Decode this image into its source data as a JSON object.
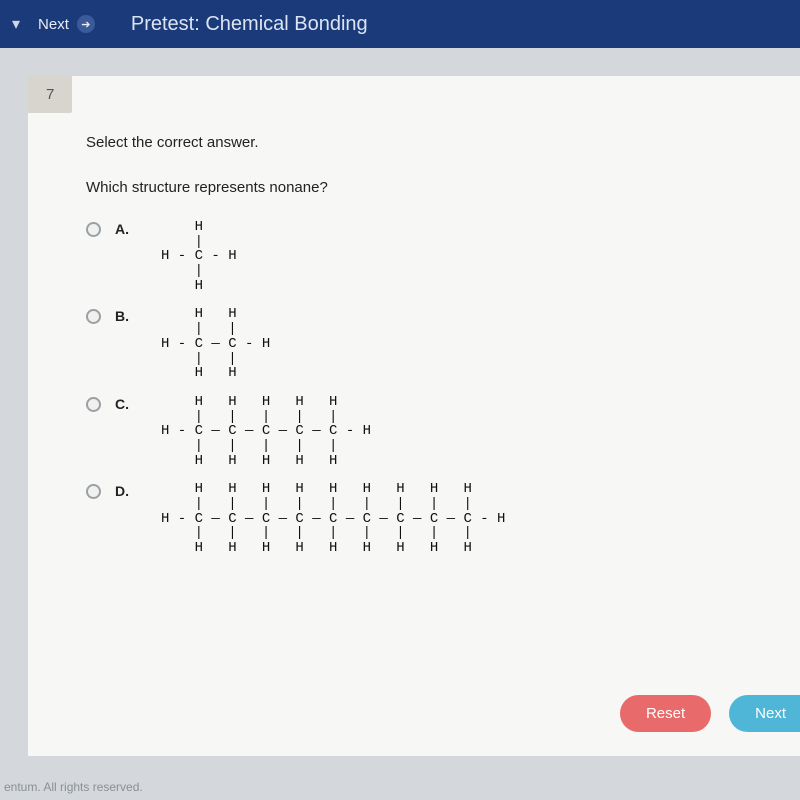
{
  "header": {
    "next_label": "Next",
    "title": "Pretest: Chemical Bonding"
  },
  "question_number": "7",
  "instruction": "Select the correct answer.",
  "question_text": "Which structure represents nonane?",
  "options": [
    {
      "label": "A.",
      "structure": "    H\n    |\nH - C - H\n    |\n    H"
    },
    {
      "label": "B.",
      "structure": "    H   H\n    |   |\nH - C — C - H\n    |   |\n    H   H"
    },
    {
      "label": "C.",
      "structure": "    H   H   H   H   H\n    |   |   |   |   |\nH - C — C — C — C — C - H\n    |   |   |   |   |\n    H   H   H   H   H"
    },
    {
      "label": "D.",
      "structure": "    H   H   H   H   H   H   H   H   H\n    |   |   |   |   |   |   |   |   |\nH - C — C — C — C — C — C — C — C — C - H\n    |   |   |   |   |   |   |   |   |\n    H   H   H   H   H   H   H   H   H"
    }
  ],
  "buttons": {
    "reset": "Reset",
    "next": "Next"
  },
  "footer": "entum. All rights reserved.",
  "colors": {
    "header_bg": "#1a3a7a",
    "panel_bg": "#f7f7f5",
    "tab_bg": "#d8d5cf",
    "reset_btn": "#e86a6a",
    "next_btn": "#4fb6d8",
    "body_bg": "#d4d8dc"
  }
}
